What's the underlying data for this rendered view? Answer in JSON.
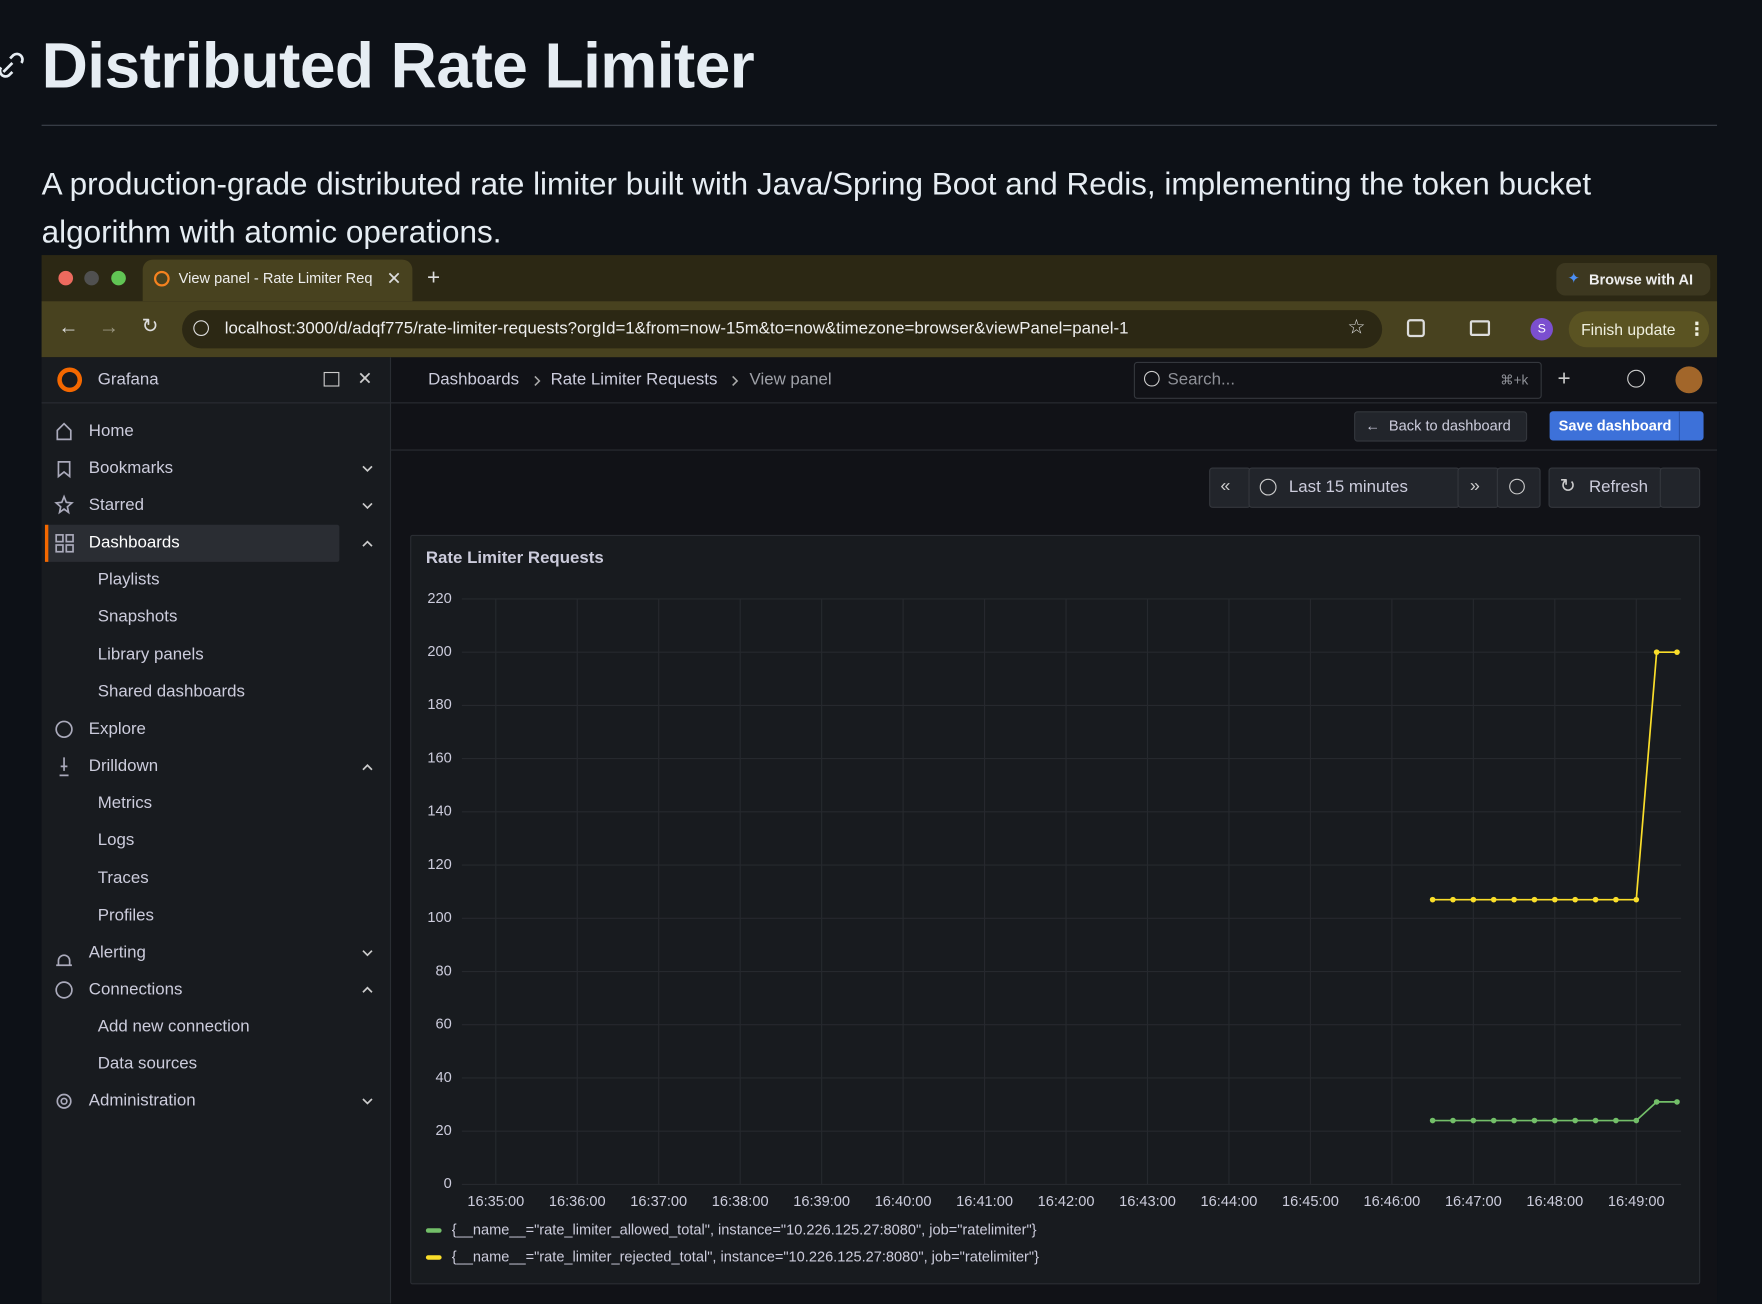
{
  "readme": {
    "title": "Distributed Rate Limiter",
    "description": "A production-grade distributed rate limiter built with Java/Spring Boot and Redis, implementing the token bucket algorithm with atomic operations."
  },
  "browser": {
    "tab_title": "View panel - Rate Limiter Req",
    "browse_ai": "Browse with AI",
    "url": "localhost:3000/d/adqf775/rate-limiter-requests?orgId=1&from=now-15m&to=now&timezone=browser&viewPanel=panel-1",
    "profile_initial": "S",
    "finish_update": "Finish update"
  },
  "grafana": {
    "brand": "Grafana",
    "search_placeholder": "Search...",
    "search_shortcut": "⌘+k",
    "breadcrumbs": [
      "Dashboards",
      "Rate Limiter Requests",
      "View panel"
    ],
    "back": "Back to dashboard",
    "save": "Save dashboard",
    "time_range": "Last 15 minutes",
    "refresh": "Refresh",
    "nav": [
      "Home",
      "Bookmarks",
      "Starred",
      "Dashboards",
      "Playlists",
      "Snapshots",
      "Library panels",
      "Shared dashboards",
      "Explore",
      "Drilldown",
      "Metrics",
      "Logs",
      "Traces",
      "Profiles",
      "Alerting",
      "Connections",
      "Add new connection",
      "Data sources",
      "Administration"
    ]
  },
  "chart_data": {
    "type": "line",
    "title": "Rate Limiter Requests",
    "x": [
      "16:46:30",
      "16:46:45",
      "16:47:00",
      "16:47:15",
      "16:47:30",
      "16:47:45",
      "16:48:00",
      "16:48:15",
      "16:48:30",
      "16:48:45",
      "16:49:00",
      "16:49:15",
      "16:49:30"
    ],
    "series": [
      {
        "name": "{__name__=\"rate_limiter_allowed_total\", instance=\"10.226.125.27:8080\", job=\"ratelimiter\"}",
        "color": "#73bf69",
        "values": [
          24,
          24,
          24,
          24,
          24,
          24,
          24,
          24,
          24,
          24,
          24,
          31,
          31
        ]
      },
      {
        "name": "{__name__=\"rate_limiter_rejected_total\", instance=\"10.226.125.27:8080\", job=\"ratelimiter\"}",
        "color": "#fade2a",
        "values": [
          107,
          107,
          107,
          107,
          107,
          107,
          107,
          107,
          107,
          107,
          107,
          200,
          200
        ]
      }
    ],
    "xlim": [
      "16:34:35",
      "16:49:33"
    ],
    "xticks": [
      "16:35:00",
      "16:36:00",
      "16:37:00",
      "16:38:00",
      "16:39:00",
      "16:40:00",
      "16:41:00",
      "16:42:00",
      "16:43:00",
      "16:44:00",
      "16:45:00",
      "16:46:00",
      "16:47:00",
      "16:48:00",
      "16:49:00"
    ],
    "ylim": [
      0,
      220
    ],
    "yticks": [
      0,
      20,
      40,
      60,
      80,
      100,
      120,
      140,
      160,
      180,
      200,
      220
    ],
    "grid": true
  }
}
